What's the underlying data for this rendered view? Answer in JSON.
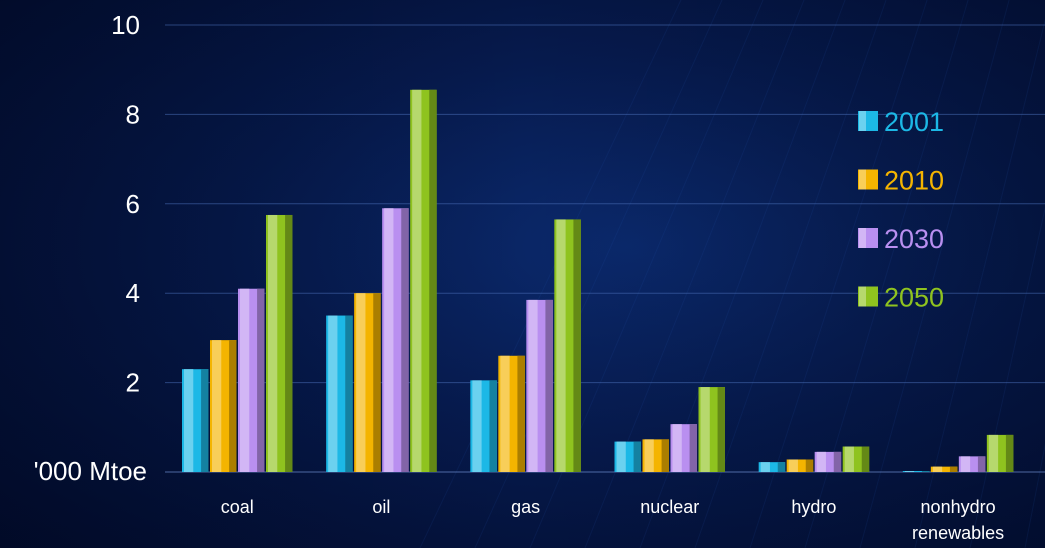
{
  "chart_data": {
    "type": "bar",
    "ylabel": "'000 Mtoe",
    "ylim": [
      0,
      10
    ],
    "yticks": [
      "2",
      "4",
      "6",
      "8",
      "10"
    ],
    "categories": [
      "coal",
      "oil",
      "gas",
      "nuclear",
      "hydro",
      "nonhydro renewables"
    ],
    "series": [
      {
        "name": "2001",
        "color": "#1cb8e6",
        "values": [
          2.3,
          3.5,
          2.05,
          0.68,
          0.22,
          0.02
        ]
      },
      {
        "name": "2010",
        "color": "#f4b400",
        "values": [
          2.95,
          4.0,
          2.6,
          0.73,
          0.28,
          0.12
        ]
      },
      {
        "name": "2030",
        "color": "#b98ff0",
        "values": [
          4.1,
          5.9,
          3.85,
          1.07,
          0.45,
          0.35
        ]
      },
      {
        "name": "2050",
        "color": "#8fc31f",
        "values": [
          5.75,
          8.55,
          5.65,
          1.9,
          0.57,
          0.83
        ]
      }
    ],
    "legend_position": "right",
    "grid": true
  }
}
